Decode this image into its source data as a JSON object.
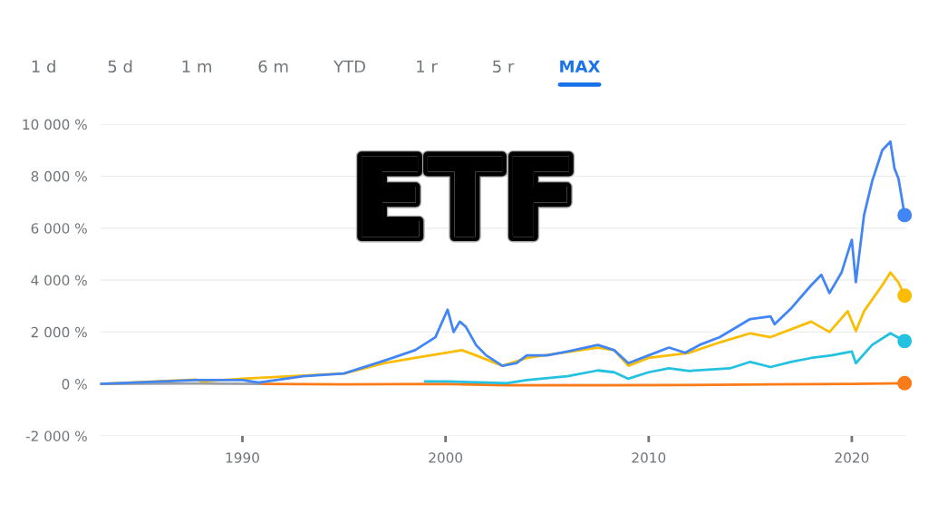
{
  "chart_data": {
    "type": "line",
    "annotations": [
      "1 d",
      "5 d",
      "1 m",
      "6 m",
      "YTD",
      "1 r",
      "5 r",
      "MAX",
      "ETF"
    ],
    "xlim": [
      1983,
      2022.7
    ],
    "xticks": [
      1990,
      2000,
      2010,
      2020
    ],
    "ylim": [
      -2000,
      10000
    ],
    "yticks": [
      {
        "value": -2000,
        "label": "-2 000 %"
      },
      {
        "value": 0,
        "label": "0 %"
      },
      {
        "value": 2000,
        "label": "2 000 %"
      },
      {
        "value": 4000,
        "label": "4 000 %"
      },
      {
        "value": 6000,
        "label": "6 000 %"
      },
      {
        "value": 8000,
        "label": "8 000 %"
      },
      {
        "value": 10000,
        "label": "10 000 %"
      }
    ],
    "grid": "y",
    "legend": false,
    "series": [
      {
        "color": "#9aa0a6",
        "x": [
          1983,
          1985,
          1987.7,
          1989,
          1991
        ],
        "values": [
          0,
          10,
          20,
          10,
          0
        ]
      },
      {
        "color": "#fa7b17",
        "x": [
          1991,
          1995,
          2000,
          2003,
          2008,
          2012,
          2016,
          2020,
          2022.6
        ],
        "values": [
          0,
          -20,
          0,
          -50,
          -50,
          -40,
          -20,
          0,
          30
        ]
      },
      {
        "color": "#24c1e0",
        "x": [
          1999,
          2000,
          2002,
          2003,
          2004,
          2006,
          2007.5,
          2008.3,
          2009,
          2010,
          2011,
          2012,
          2014,
          2015,
          2016,
          2017,
          2018,
          2019,
          2020.0,
          2020.2,
          2021,
          2021.9,
          2022.6
        ],
        "values": [
          100,
          100,
          50,
          30,
          150,
          300,
          520,
          450,
          200,
          450,
          600,
          500,
          600,
          850,
          650,
          850,
          1000,
          1100,
          1250,
          800,
          1500,
          1950,
          1650
        ]
      },
      {
        "color": "#fbbc04",
        "x": [
          1983,
          1987.7,
          1988,
          1990,
          1995,
          1997,
          1998.5,
          2000,
          2000.8,
          2001.5,
          2002.8,
          2004,
          2007.5,
          2008.3,
          2009.0,
          2010,
          2012,
          2013.5,
          2015,
          2016,
          2018,
          2018.9,
          2019.8,
          2020.2,
          2020.6,
          2021.5,
          2021.9,
          2022.3,
          2022.6
        ],
        "values": [
          0,
          170,
          100,
          200,
          400,
          800,
          1000,
          1200,
          1300,
          1100,
          700,
          1000,
          1400,
          1300,
          700,
          1000,
          1200,
          1600,
          1950,
          1800,
          2400,
          2000,
          2800,
          2040,
          2800,
          3800,
          4290,
          3900,
          3400
        ]
      },
      {
        "color": "#4285f4",
        "x": [
          1983,
          1985,
          1987.7,
          1990,
          1990.8,
          1993,
          1995,
          1997,
          1998.5,
          1999.5,
          2000.1,
          2000.4,
          2000.7,
          2001.0,
          2001.5,
          2002.0,
          2002.8,
          2003.5,
          2004.0,
          2005,
          2006,
          2007.5,
          2008.3,
          2009.0,
          2010,
          2011,
          2011.8,
          2012.5,
          2013.5,
          2015,
          2016.0,
          2016.2,
          2017,
          2018.0,
          2018.5,
          2018.9,
          2019.5,
          2020.0,
          2020.2,
          2020.6,
          2021.0,
          2021.5,
          2021.9,
          2022.1,
          2022.3,
          2022.6
        ],
        "values": [
          0,
          60,
          150,
          150,
          50,
          300,
          400,
          900,
          1300,
          1800,
          2860,
          2000,
          2400,
          2200,
          1500,
          1100,
          700,
          800,
          1100,
          1100,
          1250,
          1500,
          1300,
          800,
          1100,
          1400,
          1200,
          1500,
          1800,
          2500,
          2600,
          2300,
          2900,
          3800,
          4200,
          3500,
          4300,
          5550,
          3920,
          6490,
          7800,
          9000,
          9330,
          8300,
          7900,
          6500
        ]
      }
    ]
  }
}
